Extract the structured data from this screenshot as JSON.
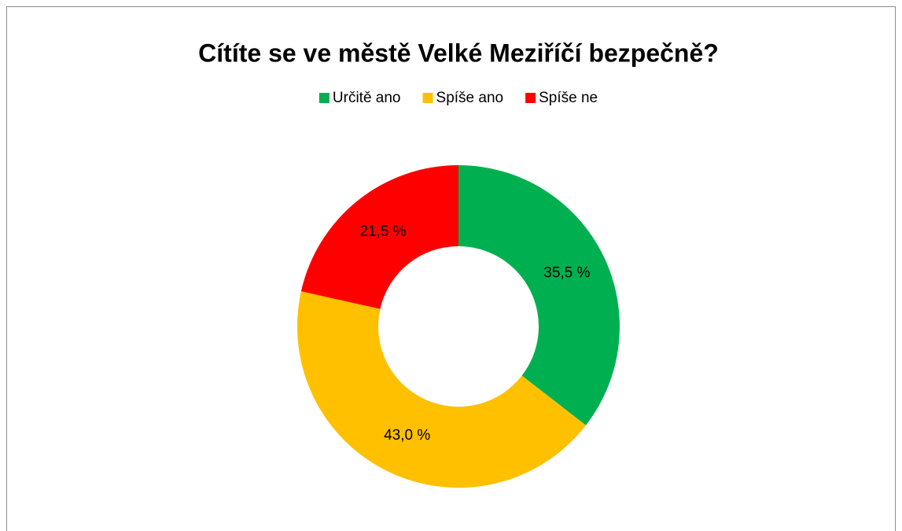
{
  "chart_data": {
    "type": "donut",
    "title": "Cítíte se ve městě Velké Meziříčí bezpečně?",
    "categories": [
      "Určitě ano",
      "Spíše ano",
      "Spíše ne"
    ],
    "values": [
      35.5,
      43.0,
      21.5
    ],
    "value_labels": [
      "35,5 %",
      "43,0 %",
      "21,5 %"
    ],
    "colors": [
      "#00b050",
      "#ffc000",
      "#ff0000"
    ],
    "legend": "top"
  }
}
